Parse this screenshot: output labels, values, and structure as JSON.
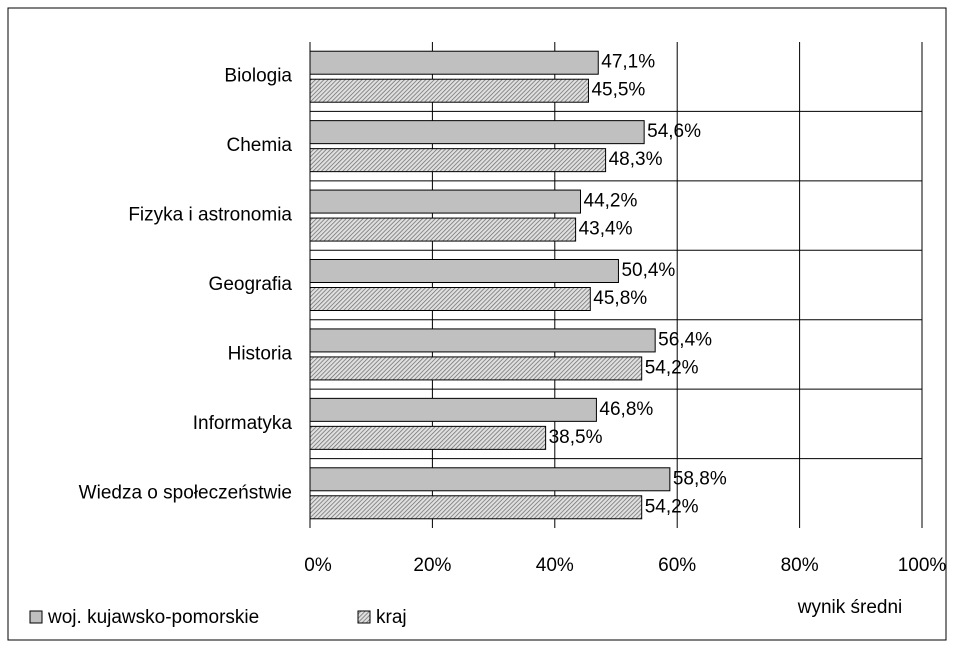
{
  "chart_data": {
    "type": "bar",
    "orientation": "horizontal",
    "x_label": "wynik średni",
    "categories": [
      "Biologia",
      "Chemia",
      "Fizyka i astronomia",
      "Geografia",
      "Historia",
      "Informatyka",
      "Wiedza o społeczeństwie"
    ],
    "series": [
      {
        "name": "woj. kujawsko-pomorskie",
        "color": "#c0c0c0",
        "values": [
          47.1,
          54.6,
          44.2,
          50.4,
          56.4,
          46.8,
          58.8
        ],
        "value_labels": [
          "47,1%",
          "54,6%",
          "44,2%",
          "50,4%",
          "56,4%",
          "46,8%",
          "58,8%"
        ]
      },
      {
        "name": "kraj",
        "color": "#6e6e6e",
        "pattern": "hatch",
        "values": [
          45.5,
          48.3,
          43.4,
          45.8,
          54.2,
          38.5,
          54.2
        ],
        "value_labels": [
          "45,5%",
          "48,3%",
          "43,4%",
          "45,8%",
          "54,2%",
          "38,5%",
          "54,2%"
        ]
      }
    ],
    "xlim": [
      0,
      100
    ],
    "xticks": [
      {
        "value": 0,
        "label": "0%"
      },
      {
        "value": 20,
        "label": "20%"
      },
      {
        "value": 40,
        "label": "40%"
      },
      {
        "value": 60,
        "label": "60%"
      },
      {
        "value": 80,
        "label": "80%"
      },
      {
        "value": 100,
        "label": "100%"
      }
    ],
    "grid": true,
    "legend": "bottom-left"
  }
}
